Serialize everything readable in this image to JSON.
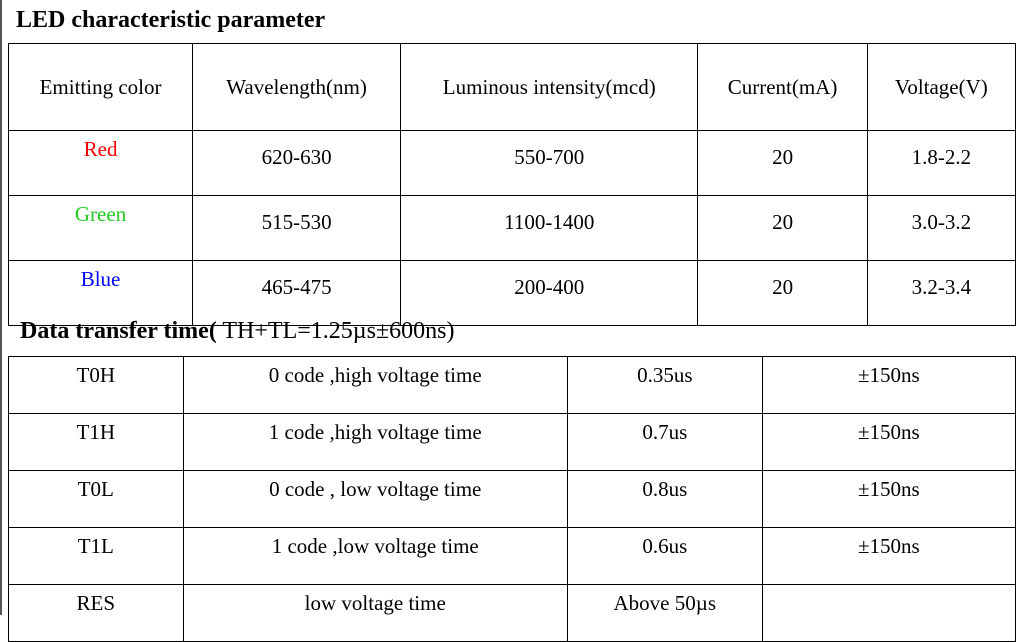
{
  "led_section": {
    "title": "LED characteristic parameter",
    "headers": [
      "Emitting color",
      "Wavelength(nm)",
      "Luminous intensity(mcd)",
      "Current(mA)",
      "Voltage(V)"
    ],
    "rows": [
      {
        "color": "Red",
        "wavelength": "620-630",
        "intensity": "550-700",
        "current": "20",
        "voltage": "1.8-2.2"
      },
      {
        "color": "Green",
        "wavelength": "515-530",
        "intensity": "1100-1400",
        "current": "20",
        "voltage": "3.0-3.2"
      },
      {
        "color": "Blue",
        "wavelength": "465-475",
        "intensity": "200-400",
        "current": "20",
        "voltage": "3.2-3.4"
      }
    ],
    "color_hex": {
      "Red": "#ff0000",
      "Green": "#22cc22",
      "Blue": "#0000ff"
    }
  },
  "timing_section": {
    "title_bold": "Data transfer time(",
    "title_rest": " TH+TL=1.25µs±600ns)",
    "rows": [
      {
        "name": "T0H",
        "desc": "0 code ,high voltage time",
        "value": "0.35us",
        "tolerance": "±150ns"
      },
      {
        "name": "T1H",
        "desc": "1 code ,high voltage time",
        "value": "0.7us",
        "tolerance": "±150ns"
      },
      {
        "name": "T0L",
        "desc": "0 code , low voltage time",
        "value": "0.8us",
        "tolerance": "±150ns"
      },
      {
        "name": "T1L",
        "desc": "1 code ,low voltage time",
        "value": "0.6us",
        "tolerance": "±150ns"
      },
      {
        "name": "RES",
        "desc": "low voltage time",
        "value": "Above 50µs",
        "tolerance": ""
      }
    ]
  }
}
